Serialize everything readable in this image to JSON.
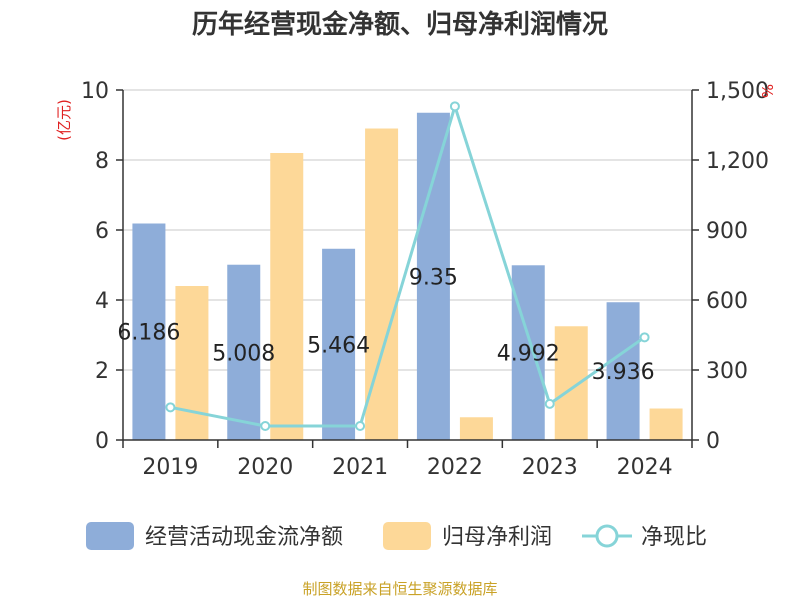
{
  "chart_data": {
    "type": "bar",
    "title": "历年经营现金净额、归母净利润情况",
    "categories": [
      "2019",
      "2020",
      "2021",
      "2022",
      "2023",
      "2024"
    ],
    "y_left": {
      "label": "(亿元)",
      "ylim": [
        0,
        10
      ],
      "ticks": [
        "0",
        "2",
        "4",
        "6",
        "8",
        "10"
      ]
    },
    "y_right": {
      "label": "%",
      "ylim": [
        0,
        1500
      ],
      "ticks": [
        "0",
        "300",
        "600",
        "900",
        "1,200",
        "1,500"
      ]
    },
    "series": [
      {
        "name": "经营活动现金流净额",
        "type": "bar",
        "axis": "left",
        "color": "#8eadd9",
        "values": [
          6.186,
          5.008,
          5.464,
          9.35,
          4.992,
          3.936
        ],
        "labels": [
          "6.186",
          "5.008",
          "5.464",
          "9.35",
          "4.992",
          "3.936"
        ]
      },
      {
        "name": "归母净利润",
        "type": "bar",
        "axis": "left",
        "color": "#fdd898",
        "values": [
          4.4,
          8.2,
          8.9,
          0.65,
          3.25,
          0.9
        ]
      },
      {
        "name": "净现比",
        "type": "line",
        "axis": "right",
        "color": "#86d4d8",
        "values": [
          140,
          60,
          60,
          1430,
          155,
          440
        ]
      }
    ],
    "grid": true,
    "legend": "bottom",
    "source": "制图数据来自恒生聚源数据库"
  }
}
